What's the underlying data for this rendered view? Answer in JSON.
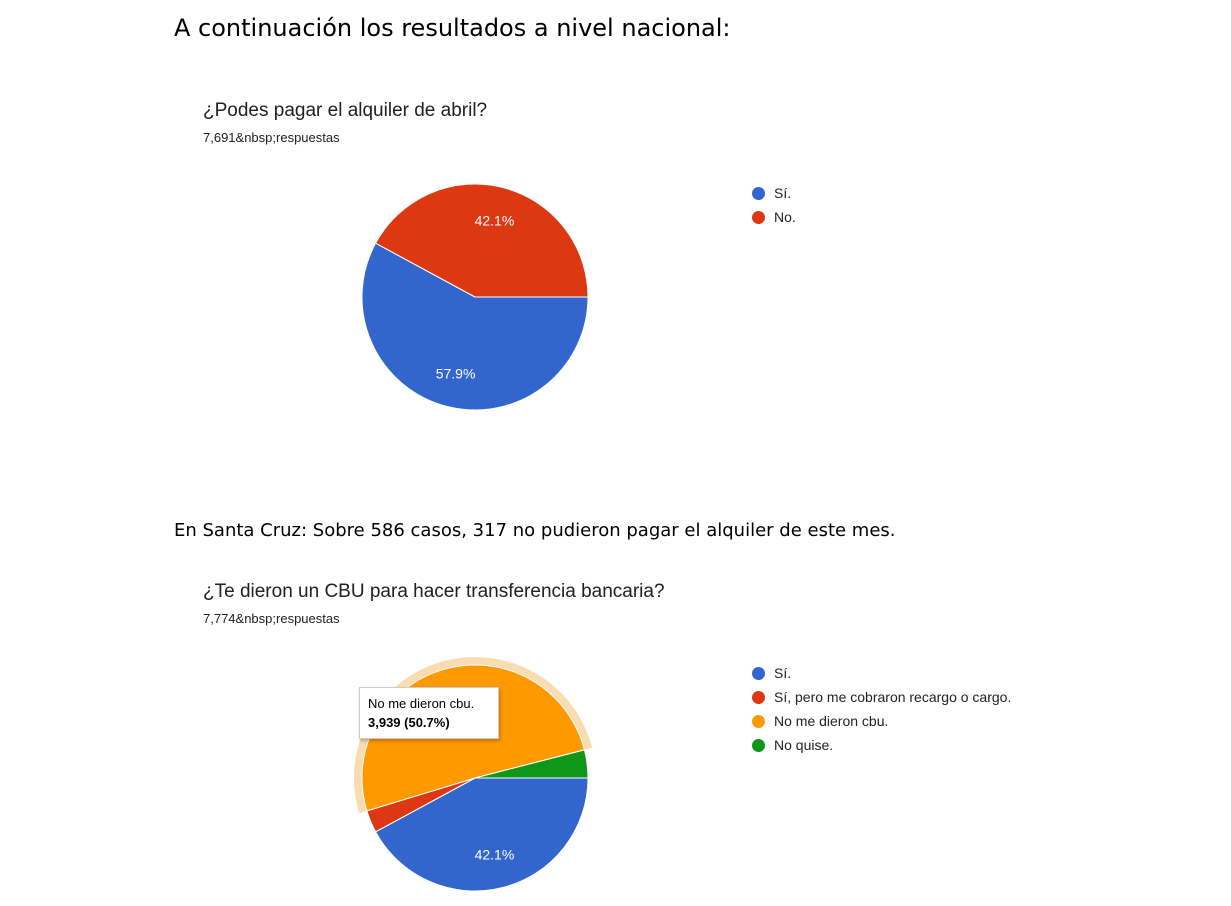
{
  "heading": "A continuación los resultados a nivel nacional:",
  "note": "En Santa Cruz: Sobre 586 casos, 317 no pudieron pagar el alquiler de este mes.",
  "chart_data": [
    {
      "type": "pie",
      "title": "¿Podes pagar el alquiler de abril?",
      "subtitle": "7,691&nbsp;respuestas",
      "legend": "right",
      "slices": [
        {
          "label": "Sí.",
          "value": 57.9,
          "color": "#3366cc",
          "data_label": "57.9%"
        },
        {
          "label": "No.",
          "value": 42.1,
          "color": "#dc3912",
          "data_label": "42.1%"
        }
      ]
    },
    {
      "type": "pie",
      "title": "¿Te dieron un CBU para hacer transferencia bancaria?",
      "subtitle": "7,774&nbsp;respuestas",
      "legend": "right",
      "slices": [
        {
          "label": "Sí.",
          "value": 42.1,
          "color": "#3366cc",
          "data_label": "42.1%"
        },
        {
          "label": "Sí, pero me cobraron recargo o cargo.",
          "value": 3.2,
          "color": "#dc3912",
          "data_label": ""
        },
        {
          "label": "No me dieron cbu.",
          "value": 50.7,
          "color": "#ff9900",
          "data_label": ""
        },
        {
          "label": "No quise.",
          "value": 4.0,
          "color": "#109618",
          "data_label": ""
        }
      ],
      "tooltip": {
        "label": "No me dieron cbu.",
        "value": "3,939 (50.7%)"
      }
    }
  ]
}
